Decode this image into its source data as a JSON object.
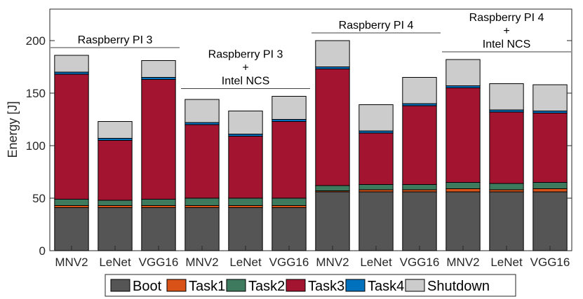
{
  "chart_data": {
    "type": "bar",
    "stacked": true,
    "ylabel": "Energy [J]",
    "xlabel": "",
    "ylim": [
      0,
      230
    ],
    "yticks": [
      0,
      50,
      100,
      150,
      200
    ],
    "categories": [
      "MNV2",
      "LeNet",
      "VGG16",
      "MNV2",
      "LeNet",
      "VGG16",
      "MNV2",
      "LeNet",
      "VGG16",
      "MNV2",
      "LeNet",
      "VGG16"
    ],
    "series": [
      {
        "name": "Boot",
        "color": "#555555",
        "values": [
          41,
          41,
          41,
          41,
          41,
          41,
          56,
          56,
          56,
          56,
          56,
          56
        ]
      },
      {
        "name": "Task1",
        "color": "#d95319",
        "values": [
          2,
          2,
          2,
          2,
          2,
          2,
          1,
          2,
          2,
          3,
          2,
          3
        ]
      },
      {
        "name": "Task2",
        "color": "#3d7a5e",
        "values": [
          6,
          5,
          6,
          7,
          7,
          7,
          5,
          5,
          5,
          6,
          6,
          6
        ]
      },
      {
        "name": "Task3",
        "color": "#a2142f",
        "values": [
          119,
          57,
          114,
          70,
          59,
          73,
          111,
          49,
          75,
          90,
          68,
          66
        ]
      },
      {
        "name": "Task4",
        "color": "#0072bd",
        "values": [
          2,
          2,
          2,
          2,
          2,
          2,
          2,
          2,
          2,
          2,
          2,
          2
        ]
      },
      {
        "name": "Shutdown",
        "color": "#cccccc",
        "values": [
          16,
          16,
          16,
          22,
          22,
          22,
          25,
          25,
          25,
          25,
          25,
          25
        ]
      }
    ],
    "groups": [
      {
        "lines": [
          "Raspberry PI 3"
        ],
        "bars": [
          0,
          2
        ]
      },
      {
        "lines": [
          "Raspberry PI 3",
          "+",
          "Intel NCS"
        ],
        "bars": [
          3,
          5
        ]
      },
      {
        "lines": [
          "Raspberry PI 4"
        ],
        "bars": [
          6,
          8
        ]
      },
      {
        "lines": [
          "Raspberry PI 4",
          "+",
          "Intel NCS"
        ],
        "bars": [
          9,
          11
        ]
      }
    ],
    "legend_position": "bottom"
  }
}
